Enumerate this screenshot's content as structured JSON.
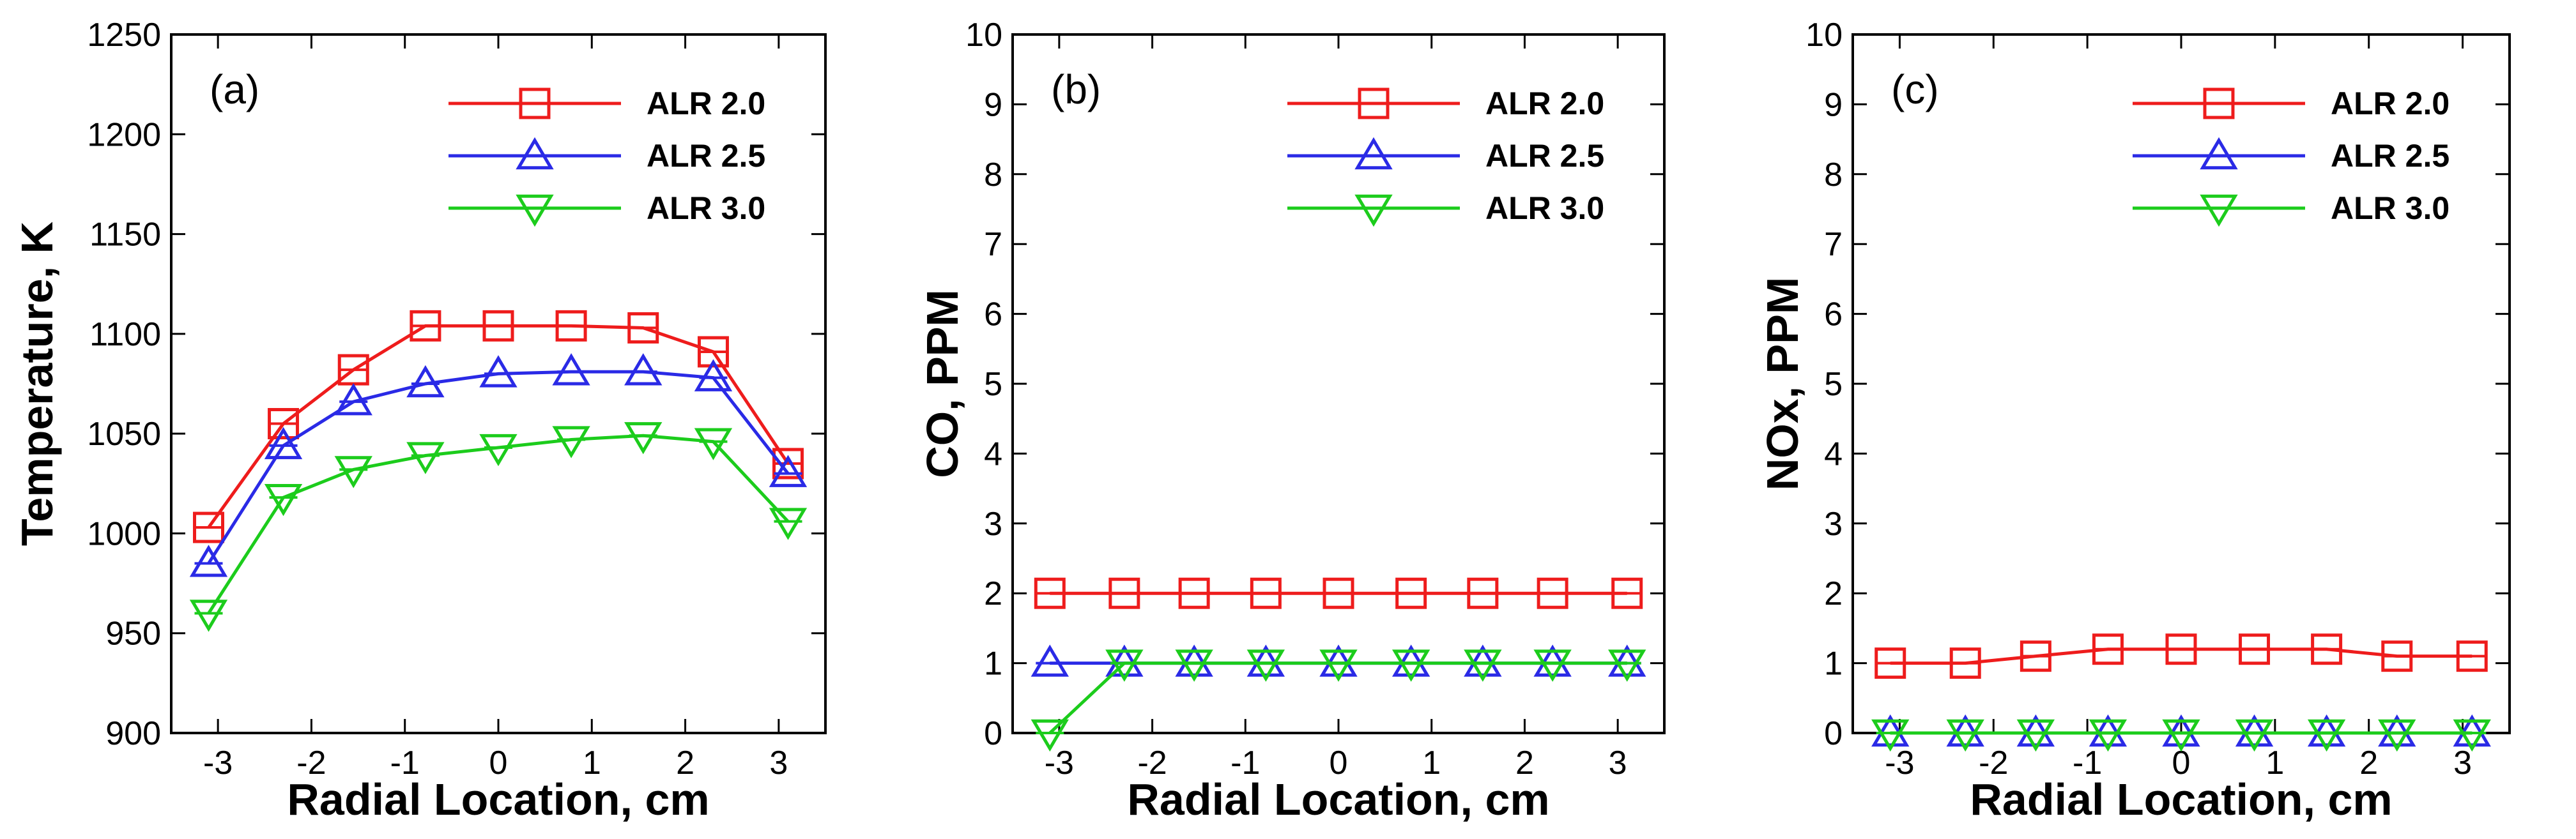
{
  "colors": {
    "ALR 2.0": "#ee1c1c",
    "ALR 2.5": "#2a2ae6",
    "ALR 3.0": "#1ccc1c"
  },
  "chart_data": [
    {
      "type": "line",
      "panel_label": "(a)",
      "xlabel": "Radial Location, cm",
      "ylabel": "Temperature, K",
      "xlim": [
        -3.5,
        3.5
      ],
      "ylim": [
        900,
        1250
      ],
      "xticks": [
        -3,
        -2,
        -1,
        0,
        1,
        2,
        3
      ],
      "yticks": [
        900,
        950,
        1000,
        1050,
        1100,
        1150,
        1200,
        1250
      ],
      "x": [
        -3.1,
        -2.3,
        -1.55,
        -0.78,
        0,
        0.78,
        1.55,
        2.3,
        3.1
      ],
      "series": [
        {
          "name": "ALR 2.0",
          "marker": "square",
          "values": [
            1003,
            1055,
            1082,
            1104,
            1104,
            1104,
            1103,
            1091,
            1035
          ]
        },
        {
          "name": "ALR 2.5",
          "marker": "triangle-up",
          "values": [
            985,
            1044,
            1066,
            1075,
            1080,
            1081,
            1081,
            1078,
            1030
          ]
        },
        {
          "name": "ALR 3.0",
          "marker": "triangle-down",
          "values": [
            960,
            1018,
            1032,
            1039,
            1043,
            1047,
            1049,
            1046,
            1006
          ]
        }
      ],
      "legend": [
        "ALR 2.0",
        "ALR 2.5",
        "ALR 3.0"
      ]
    },
    {
      "type": "line",
      "panel_label": "(b)",
      "xlabel": "Radial Location, cm",
      "ylabel": "CO, PPM",
      "xlim": [
        -3.5,
        3.5
      ],
      "ylim": [
        0,
        10
      ],
      "xticks": [
        -3,
        -2,
        -1,
        0,
        1,
        2,
        3
      ],
      "yticks": [
        0,
        1,
        2,
        3,
        4,
        5,
        6,
        7,
        8,
        9,
        10
      ],
      "x": [
        -3.1,
        -2.3,
        -1.55,
        -0.78,
        0,
        0.78,
        1.55,
        2.3,
        3.1
      ],
      "series": [
        {
          "name": "ALR 2.0",
          "marker": "square",
          "values": [
            2,
            2,
            2,
            2,
            2,
            2,
            2,
            2,
            2
          ]
        },
        {
          "name": "ALR 2.5",
          "marker": "triangle-up",
          "values": [
            1,
            1,
            1,
            1,
            1,
            1,
            1,
            1,
            1
          ]
        },
        {
          "name": "ALR 3.0",
          "marker": "triangle-down",
          "values": [
            0,
            1,
            1,
            1,
            1,
            1,
            1,
            1,
            1
          ]
        }
      ],
      "legend": [
        "ALR 2.0",
        "ALR 2.5",
        "ALR 3.0"
      ]
    },
    {
      "type": "line",
      "panel_label": "(c)",
      "xlabel": "Radial Location, cm",
      "ylabel": "NOx, PPM",
      "xlim": [
        -3.5,
        3.5
      ],
      "ylim": [
        0,
        10
      ],
      "xticks": [
        -3,
        -2,
        -1,
        0,
        1,
        2,
        3
      ],
      "yticks": [
        0,
        1,
        2,
        3,
        4,
        5,
        6,
        7,
        8,
        9,
        10
      ],
      "x": [
        -3.1,
        -2.3,
        -1.55,
        -0.78,
        0,
        0.78,
        1.55,
        2.3,
        3.1
      ],
      "series": [
        {
          "name": "ALR 2.0",
          "marker": "square",
          "values": [
            1.0,
            1.0,
            1.1,
            1.2,
            1.2,
            1.2,
            1.2,
            1.1,
            1.1
          ]
        },
        {
          "name": "ALR 2.5",
          "marker": "triangle-up",
          "values": [
            0,
            0,
            0,
            0,
            0,
            0,
            0,
            0,
            0
          ]
        },
        {
          "name": "ALR 3.0",
          "marker": "triangle-down",
          "values": [
            0,
            0,
            0,
            0,
            0,
            0,
            0,
            0,
            0
          ]
        }
      ],
      "legend": [
        "ALR 2.0",
        "ALR 2.5",
        "ALR 3.0"
      ]
    }
  ]
}
